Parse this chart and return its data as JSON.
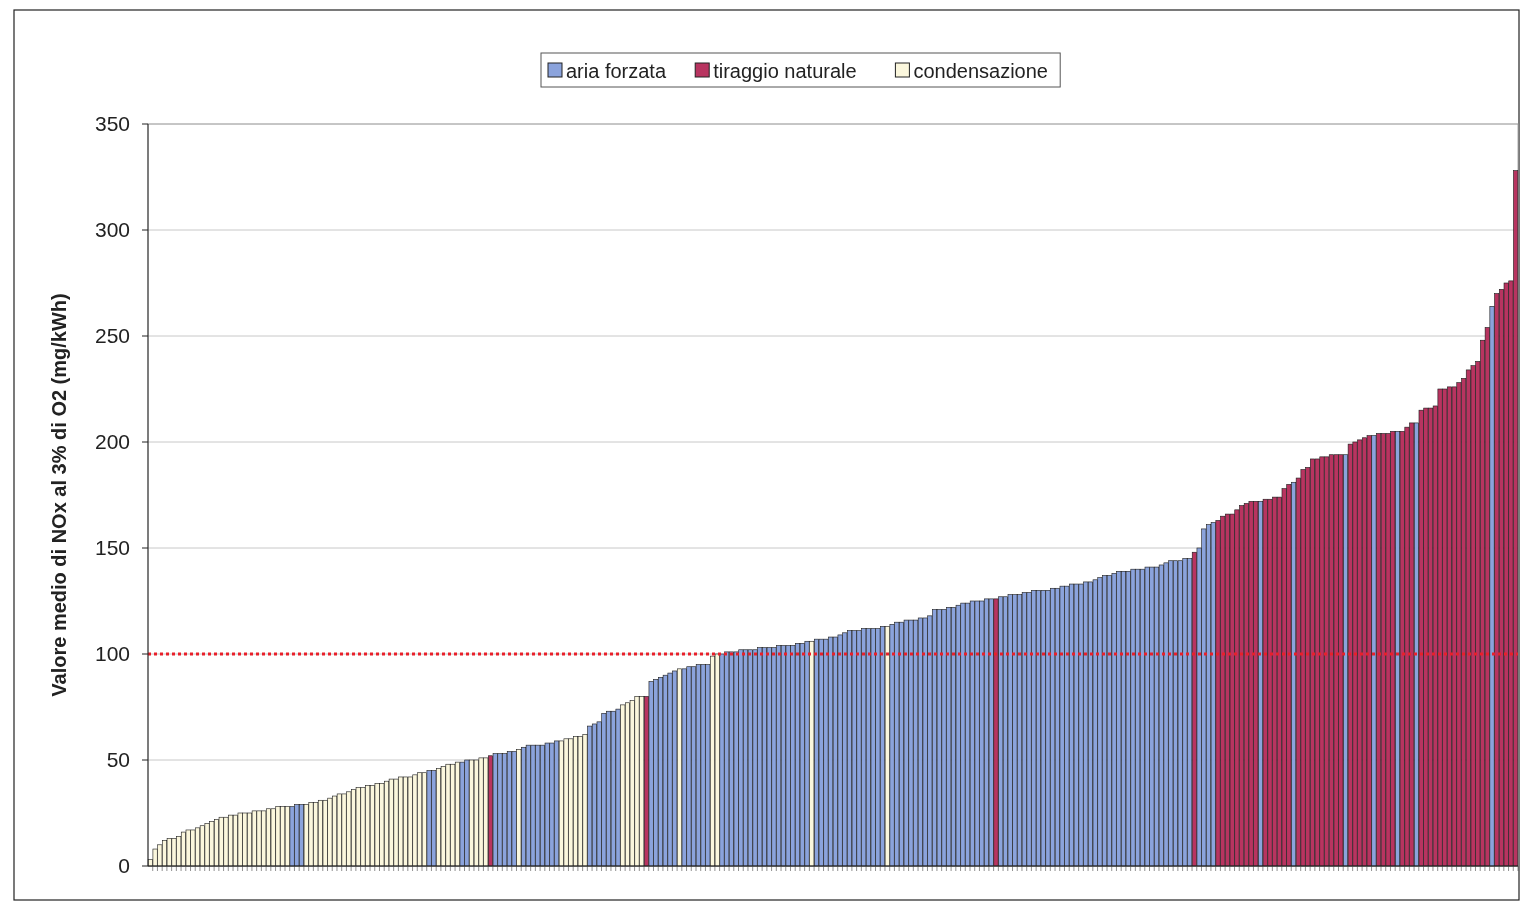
{
  "chart_data": {
    "type": "bar",
    "stacked": true,
    "ylabel": "Valore medio di NOx al 3% di O2 (mg/kWh)",
    "categories": [
      null,
      null,
      null,
      null,
      null,
      null,
      null,
      null,
      null,
      null,
      null,
      null,
      null,
      null,
      null,
      null,
      null,
      null,
      null,
      null,
      null,
      null,
      null,
      null,
      null,
      null,
      null,
      null,
      null,
      null,
      null,
      null,
      null,
      null,
      null,
      null,
      null,
      null,
      null,
      null,
      null,
      null,
      null,
      null,
      null,
      null,
      null,
      null,
      null,
      null,
      null,
      null,
      null,
      null,
      null,
      null,
      null,
      null,
      null,
      null,
      null,
      null,
      null,
      null,
      null,
      null,
      null,
      null,
      null,
      null,
      null,
      null,
      null,
      null,
      null,
      null,
      null,
      null,
      null,
      null,
      null,
      null,
      null,
      null,
      null,
      null,
      null,
      null,
      null,
      null,
      null,
      null,
      null,
      null,
      null,
      null,
      null,
      null,
      null,
      null,
      null,
      null,
      null,
      null,
      null,
      null,
      null,
      null,
      null,
      null,
      null,
      null,
      null,
      null,
      null,
      null,
      null,
      null,
      null,
      null,
      null,
      null,
      null,
      null,
      null,
      null,
      null,
      null,
      null,
      null,
      null,
      null,
      null,
      null,
      null,
      null,
      null,
      null,
      null,
      null,
      null,
      null,
      null,
      null,
      null,
      null,
      null,
      null,
      null,
      null,
      null,
      null,
      null,
      null,
      null,
      null,
      null,
      null,
      null,
      null,
      null,
      null,
      null,
      null,
      null,
      null,
      null,
      null,
      null,
      null,
      null,
      null,
      null,
      null,
      null,
      null,
      null,
      null,
      null,
      null,
      null,
      null,
      null,
      null,
      null,
      null,
      null,
      null,
      null,
      null,
      null,
      null,
      null,
      null,
      null,
      null,
      null,
      null,
      null,
      null,
      null,
      null,
      null,
      null,
      null,
      null,
      null,
      null,
      null,
      null,
      null,
      null,
      null,
      null,
      null,
      null,
      null,
      null,
      null,
      null,
      null,
      null,
      null,
      null,
      null,
      null,
      null,
      null,
      null,
      null,
      null,
      null,
      null,
      null,
      null,
      null,
      null,
      null,
      null,
      null,
      null,
      null,
      null,
      null,
      null,
      null,
      null,
      null,
      null,
      null,
      null,
      null,
      null,
      null,
      null,
      null,
      null,
      null,
      null,
      null,
      null,
      null,
      null,
      null,
      null,
      null,
      null,
      null,
      null,
      null,
      null,
      null,
      null,
      null,
      null,
      null,
      null,
      null,
      null,
      null,
      null,
      null,
      null,
      null,
      null,
      null,
      null,
      null,
      null,
      null
    ],
    "series": [
      {
        "name": "aria forzata",
        "color": "#8ba3dc",
        "values": [
          null,
          null,
          null,
          null,
          null,
          null,
          null,
          null,
          null,
          null,
          null,
          null,
          null,
          null,
          null,
          null,
          null,
          null,
          null,
          null,
          null,
          null,
          null,
          null,
          null,
          null,
          null,
          null,
          null,
          null,
          28,
          29,
          29,
          null,
          null,
          null,
          null,
          null,
          null,
          null,
          null,
          null,
          null,
          null,
          null,
          null,
          null,
          null,
          null,
          null,
          null,
          null,
          null,
          null,
          null,
          null,
          null,
          null,
          null,
          45,
          45,
          null,
          null,
          null,
          null,
          null,
          49,
          50,
          null,
          null,
          null,
          null,
          null,
          53,
          53,
          53,
          54,
          54,
          null,
          56,
          57,
          57,
          57,
          57,
          58,
          58,
          59,
          null,
          null,
          null,
          null,
          null,
          null,
          66,
          67,
          68,
          72,
          73,
          73,
          74,
          null,
          null,
          null,
          null,
          null,
          null,
          87,
          88,
          89,
          90,
          91,
          92,
          null,
          93,
          94,
          94,
          95,
          95,
          95,
          null,
          null,
          100,
          101,
          101,
          101,
          102,
          102,
          102,
          102,
          103,
          103,
          103,
          103,
          104,
          104,
          104,
          104,
          105,
          105,
          106,
          null,
          107,
          107,
          107,
          108,
          108,
          109,
          110,
          111,
          111,
          111,
          112,
          112,
          112,
          112,
          113,
          null,
          114,
          115,
          115,
          116,
          116,
          116,
          117,
          117,
          118,
          121,
          121,
          121,
          122,
          122,
          123,
          124,
          124,
          125,
          125,
          125,
          126,
          126,
          null,
          127,
          127,
          128,
          128,
          128,
          129,
          129,
          130,
          130,
          130,
          130,
          131,
          131,
          132,
          132,
          133,
          133,
          133,
          134,
          134,
          135,
          136,
          137,
          137,
          138,
          139,
          139,
          139,
          140,
          140,
          140,
          141,
          141,
          141,
          142,
          143,
          144,
          144,
          144,
          145,
          145,
          null,
          150,
          159,
          161,
          162,
          null,
          null,
          null,
          null,
          null,
          null,
          null,
          null,
          null,
          172,
          null,
          null,
          null,
          null,
          null,
          null,
          181,
          null,
          null,
          null,
          null,
          null,
          null,
          null,
          null,
          null,
          null,
          194,
          null,
          null,
          null,
          null,
          null,
          203,
          null,
          null,
          null,
          null,
          205,
          null,
          null,
          null,
          209,
          null,
          null,
          null,
          null,
          null,
          null,
          null,
          null,
          null,
          null,
          null,
          null,
          null,
          null,
          null,
          264,
          null,
          null,
          null,
          null,
          null
        ]
      },
      {
        "name": "tiraggio naturale",
        "color": "#b83460",
        "values": [
          null,
          null,
          null,
          null,
          null,
          null,
          null,
          null,
          null,
          null,
          null,
          null,
          null,
          null,
          null,
          null,
          null,
          null,
          null,
          null,
          null,
          null,
          null,
          null,
          null,
          null,
          null,
          null,
          null,
          null,
          null,
          null,
          null,
          null,
          null,
          null,
          null,
          null,
          null,
          null,
          null,
          null,
          null,
          null,
          null,
          null,
          null,
          null,
          null,
          null,
          null,
          null,
          null,
          null,
          null,
          null,
          null,
          null,
          null,
          null,
          null,
          null,
          null,
          null,
          null,
          null,
          null,
          null,
          null,
          null,
          null,
          null,
          52,
          null,
          null,
          null,
          null,
          null,
          null,
          null,
          null,
          null,
          null,
          null,
          null,
          null,
          null,
          null,
          null,
          null,
          null,
          null,
          null,
          null,
          null,
          null,
          null,
          null,
          null,
          null,
          null,
          null,
          null,
          null,
          null,
          80,
          null,
          null,
          null,
          null,
          null,
          null,
          null,
          null,
          null,
          null,
          null,
          null,
          null,
          null,
          null,
          null,
          null,
          null,
          null,
          null,
          null,
          null,
          null,
          null,
          null,
          null,
          null,
          null,
          null,
          null,
          null,
          null,
          null,
          null,
          null,
          null,
          null,
          null,
          null,
          null,
          null,
          null,
          null,
          null,
          null,
          null,
          null,
          null,
          null,
          null,
          null,
          null,
          null,
          null,
          null,
          null,
          null,
          null,
          null,
          null,
          null,
          null,
          null,
          null,
          null,
          null,
          null,
          null,
          null,
          null,
          null,
          null,
          null,
          126,
          null,
          null,
          null,
          null,
          null,
          null,
          null,
          null,
          null,
          null,
          null,
          null,
          null,
          null,
          null,
          null,
          null,
          null,
          null,
          null,
          null,
          null,
          null,
          null,
          null,
          null,
          null,
          null,
          null,
          null,
          null,
          null,
          null,
          null,
          null,
          null,
          null,
          null,
          null,
          null,
          null,
          148,
          null,
          null,
          null,
          null,
          163,
          165,
          166,
          166,
          168,
          170,
          171,
          172,
          172,
          null,
          173,
          173,
          174,
          174,
          178,
          180,
          null,
          183,
          187,
          188,
          192,
          192,
          193,
          193,
          194,
          194,
          194,
          null,
          199,
          200,
          201,
          202,
          203,
          null,
          204,
          204,
          204,
          205,
          null,
          205,
          207,
          209,
          null,
          215,
          216,
          216,
          217,
          225,
          225,
          226,
          226,
          228,
          230,
          234,
          236,
          238,
          248,
          254,
          null,
          270,
          272,
          275,
          276,
          328
        ]
      },
      {
        "name": "condensazione",
        "color": "#fbf7dd",
        "values": [
          3,
          8,
          10,
          12,
          13,
          13,
          14,
          16,
          17,
          17,
          18,
          19,
          20,
          21,
          22,
          23,
          23,
          24,
          24,
          25,
          25,
          25,
          26,
          26,
          26,
          27,
          27,
          28,
          28,
          28,
          null,
          null,
          null,
          29,
          30,
          30,
          31,
          31,
          32,
          33,
          34,
          34,
          35,
          36,
          37,
          37,
          38,
          38,
          39,
          39,
          40,
          41,
          41,
          42,
          42,
          42,
          43,
          44,
          44,
          null,
          null,
          46,
          47,
          48,
          48,
          49,
          null,
          null,
          50,
          50,
          51,
          51,
          null,
          null,
          null,
          null,
          null,
          null,
          55,
          null,
          null,
          null,
          null,
          null,
          null,
          null,
          null,
          59,
          60,
          60,
          61,
          61,
          62,
          null,
          null,
          null,
          null,
          null,
          null,
          null,
          76,
          77,
          78,
          80,
          80,
          null,
          null,
          null,
          null,
          null,
          null,
          null,
          93,
          null,
          null,
          null,
          null,
          null,
          null,
          99,
          100,
          null,
          null,
          null,
          null,
          null,
          null,
          null,
          null,
          null,
          null,
          null,
          null,
          null,
          null,
          null,
          null,
          null,
          null,
          null,
          106,
          null,
          null,
          null,
          null,
          null,
          null,
          null,
          null,
          null,
          null,
          null,
          null,
          null,
          null,
          null,
          113,
          null,
          null,
          null,
          null,
          null,
          null,
          null,
          null,
          null,
          null,
          null,
          null,
          null,
          null,
          null,
          null,
          null,
          null,
          null,
          null,
          null,
          null,
          null,
          null,
          null,
          null,
          null,
          null,
          null,
          null,
          null,
          null,
          null,
          null,
          null,
          null,
          null,
          null,
          null,
          null,
          null,
          null,
          null,
          null,
          null,
          null,
          null,
          null,
          null,
          null,
          null,
          null,
          null,
          null,
          null,
          null,
          null,
          null,
          null,
          null,
          null,
          null,
          null,
          null,
          null,
          null,
          null,
          null,
          null,
          null,
          null,
          null,
          null,
          null,
          null,
          null,
          null,
          null,
          null,
          null,
          null,
          null,
          null,
          null,
          null,
          null,
          null,
          null,
          null,
          null,
          null,
          null,
          null,
          null,
          null,
          null,
          null,
          null,
          null,
          null,
          null,
          null,
          null,
          null,
          null,
          null,
          null,
          null,
          null,
          null,
          null,
          null,
          null,
          null,
          null,
          null,
          null,
          null,
          null,
          null,
          null,
          null,
          null,
          null,
          null,
          null,
          null,
          null,
          null,
          null,
          null,
          null,
          null
        ]
      }
    ],
    "ylim": [
      0,
      350
    ],
    "yticks": [
      0,
      50,
      100,
      150,
      200,
      250,
      300,
      350
    ],
    "grid": "y",
    "legend": "top",
    "ref_lines": [
      {
        "axis": "y",
        "value": 100,
        "color": "#e8202a",
        "line_style": "dotted"
      }
    ]
  }
}
